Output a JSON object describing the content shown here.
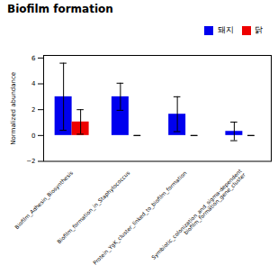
{
  "chart_data": {
    "type": "bar",
    "title": "Biofilm formation",
    "ylabel": "Normalized abundance",
    "categories": [
      "Biofilm_Adhesin_Biosynthesis",
      "Biofilm_formation_in_Staphylococcus",
      "Protein_YgK_cluster_linked_to_biofilm_formation",
      "Symbiotic_colonization_and_sigma-dependent\nbiofilm_formation_gene_cluster"
    ],
    "series": [
      {
        "name": "돼지",
        "color": "#0000EE",
        "values": [
          3.0,
          3.0,
          1.65,
          0.32
        ],
        "errors": [
          2.6,
          1.05,
          1.35,
          0.72
        ]
      },
      {
        "name": "닭",
        "color": "#EE0000",
        "values": [
          1.05,
          0,
          0,
          0
        ],
        "errors": [
          0.95,
          0,
          0,
          0
        ]
      }
    ],
    "ylim": [
      -2,
      6.2
    ],
    "yticks": [
      -2,
      0,
      2,
      4,
      6
    ],
    "legend": "upper right"
  }
}
